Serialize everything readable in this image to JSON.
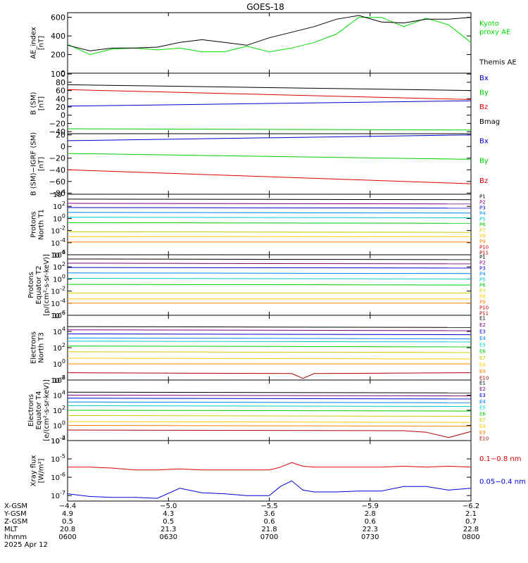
{
  "title": "GOES-18",
  "chart_data": [
    {
      "type": "line",
      "panel": "ae",
      "ylabel": [
        "AE_index",
        "[nT]"
      ],
      "ylim": [
        0,
        650
      ],
      "yticks": [
        {
          "v": 0,
          "t": "0"
        },
        {
          "v": 200,
          "t": "200"
        },
        {
          "v": 400,
          "t": "400"
        },
        {
          "v": 600,
          "t": "600"
        }
      ],
      "x": [
        0,
        10,
        20,
        30,
        40,
        50,
        60,
        70,
        80,
        90,
        100,
        110,
        120,
        130,
        140,
        150,
        160,
        170,
        180
      ],
      "series": [
        {
          "name": "Kyoto proxy AE",
          "label": [
            "Kyoto",
            "proxy AE"
          ],
          "color": "#00dd00",
          "values": [
            310,
            200,
            260,
            270,
            250,
            270,
            230,
            230,
            290,
            230,
            270,
            330,
            420,
            600,
            600,
            500,
            590,
            520,
            330
          ]
        },
        {
          "name": "Themis AE",
          "label": [
            "Themis AE"
          ],
          "color": "#000000",
          "values": [
            300,
            240,
            270,
            270,
            280,
            330,
            360,
            330,
            300,
            380,
            440,
            500,
            580,
            620,
            550,
            540,
            580,
            580,
            600
          ]
        }
      ]
    },
    {
      "type": "line",
      "panel": "bsm",
      "ylabel": [
        "B (SM)",
        "[nT]"
      ],
      "ylim": [
        -45,
        102
      ],
      "yticks": [
        {
          "v": -40,
          "t": "−40"
        },
        {
          "v": -20,
          "t": "−20"
        },
        {
          "v": 0,
          "t": "0"
        },
        {
          "v": 20,
          "t": "20"
        },
        {
          "v": 40,
          "t": "40"
        },
        {
          "v": 60,
          "t": "60"
        },
        {
          "v": 80,
          "t": "80"
        },
        {
          "v": 100,
          "t": "100"
        }
      ],
      "x": [
        0,
        180
      ],
      "series": [
        {
          "name": "Bx",
          "label": [
            "Bx"
          ],
          "color": "#0000cc",
          "values": [
            22,
            35
          ]
        },
        {
          "name": "By",
          "label": [
            "By"
          ],
          "color": "#00cc00",
          "values": [
            -33,
            -36
          ]
        },
        {
          "name": "Bz",
          "label": [
            "Bz"
          ],
          "color": "#dd0000",
          "values": [
            62,
            38
          ]
        },
        {
          "name": "Bmag",
          "label": [
            "Bmag"
          ],
          "color": "#000000",
          "values": [
            74,
            60
          ]
        }
      ]
    },
    {
      "type": "line",
      "panel": "bigrf",
      "ylabel": [
        "B (SM)−IGRF (SM)",
        "[nT]"
      ],
      "ylim": [
        -82,
        22
      ],
      "yticks": [
        {
          "v": -80,
          "t": "−80"
        },
        {
          "v": -60,
          "t": "−60"
        },
        {
          "v": -40,
          "t": "−40"
        },
        {
          "v": -20,
          "t": "−20"
        },
        {
          "v": 0,
          "t": "0"
        },
        {
          "v": 20,
          "t": "20"
        }
      ],
      "x": [
        0,
        180
      ],
      "series": [
        {
          "name": "Bx",
          "label": [
            "Bx"
          ],
          "color": "#0000cc",
          "values": [
            10,
            20
          ]
        },
        {
          "name": "By",
          "label": [
            "By"
          ],
          "color": "#00cc00",
          "values": [
            -12,
            -22
          ]
        },
        {
          "name": "Bz",
          "label": [
            "Bz"
          ],
          "color": "#dd0000",
          "values": [
            -40,
            -64
          ]
        }
      ]
    },
    {
      "type": "line",
      "panel": "p_north",
      "ylabel": [
        "Protons",
        "North T1"
      ],
      "scale": "log",
      "ylim": [
        -6,
        4
      ],
      "yticks": [
        {
          "v": 4,
          "t": "10^4"
        },
        {
          "v": 2,
          "t": "10^2"
        },
        {
          "v": 0,
          "t": "10^0"
        },
        {
          "v": -2,
          "t": "10^-2"
        },
        {
          "v": -4,
          "t": "10^-4"
        },
        {
          "v": -6,
          "t": "10^-6"
        }
      ],
      "x": [
        0,
        180
      ],
      "series": [
        {
          "name": "P1",
          "label": [
            "P1"
          ],
          "color": "#000000",
          "values": [
            3.2,
            3.1
          ]
        },
        {
          "name": "P2",
          "label": [
            "P2"
          ],
          "color": "#800080",
          "values": [
            2.5,
            2.4
          ]
        },
        {
          "name": "P3",
          "label": [
            "P3"
          ],
          "color": "#0000cc",
          "values": [
            1.8,
            1.7
          ]
        },
        {
          "name": "P4",
          "label": [
            "P4"
          ],
          "color": "#0080ff",
          "values": [
            1.0,
            0.9
          ]
        },
        {
          "name": "P5",
          "label": [
            "P5"
          ],
          "color": "#00cccc",
          "values": [
            0.2,
            0.1
          ]
        },
        {
          "name": "P6",
          "label": [
            "P6"
          ],
          "color": "#00cc00",
          "values": [
            -0.7,
            -0.8
          ]
        },
        {
          "name": "P7",
          "label": [
            "P7"
          ],
          "color": "#cccc00",
          "values": [
            -2.2,
            -2.3
          ]
        },
        {
          "name": "P8",
          "label": [
            "P8"
          ],
          "color": "#ffcc00",
          "values": [
            -3.0,
            -3.0
          ]
        },
        {
          "name": "P9",
          "label": [
            "P9"
          ],
          "color": "#ff8000",
          "values": [
            -3.9,
            -3.9
          ]
        },
        {
          "name": "P10",
          "label": [
            "P10"
          ],
          "color": "#dd0000"
        },
        {
          "name": "P11",
          "label": [
            "P11"
          ],
          "color": "#aa0000"
        }
      ]
    },
    {
      "type": "line",
      "panel": "p_eq",
      "ylabel": [
        "Protons",
        "Equator T2",
        "[p/(cm²-s-sr-keV)]"
      ],
      "scale": "log",
      "ylim": [
        -6,
        4
      ],
      "yticks": [
        {
          "v": 4,
          "t": "10^4"
        },
        {
          "v": 2,
          "t": "10^2"
        },
        {
          "v": 0,
          "t": "10^0"
        },
        {
          "v": -2,
          "t": "10^-2"
        },
        {
          "v": -4,
          "t": "10^-4"
        },
        {
          "v": -6,
          "t": "10^-6"
        }
      ],
      "x": [
        0,
        180
      ],
      "series": [
        {
          "name": "P1",
          "label": [
            "P1"
          ],
          "color": "#000000",
          "values": [
            3.3,
            3.2
          ]
        },
        {
          "name": "P2",
          "label": [
            "P2"
          ],
          "color": "#800080",
          "values": [
            2.6,
            2.5
          ]
        },
        {
          "name": "P3",
          "label": [
            "P3"
          ],
          "color": "#0000cc",
          "values": [
            1.9,
            1.8
          ]
        },
        {
          "name": "P4",
          "label": [
            "P4"
          ],
          "color": "#0080ff",
          "values": [
            1.0,
            0.9
          ]
        },
        {
          "name": "P5",
          "label": [
            "P5"
          ],
          "color": "#00cccc",
          "values": [
            0.1,
            0.0
          ]
        },
        {
          "name": "P6",
          "label": [
            "P6"
          ],
          "color": "#00cc00",
          "values": [
            -0.9,
            -1.0
          ]
        },
        {
          "name": "P7",
          "label": [
            "P7"
          ],
          "color": "#cccc00",
          "values": [
            -2.3,
            -2.3
          ]
        },
        {
          "name": "P8",
          "label": [
            "P8"
          ],
          "color": "#ffcc00",
          "values": [
            -3.3,
            -3.3
          ]
        },
        {
          "name": "P9",
          "label": [
            "P9"
          ],
          "color": "#ff8000",
          "values": [
            -4.0,
            -4.0
          ]
        },
        {
          "name": "P10",
          "label": [
            "P10"
          ],
          "color": "#dd0000"
        },
        {
          "name": "P11",
          "label": [
            "P11"
          ],
          "color": "#aa0000"
        }
      ]
    },
    {
      "type": "line",
      "panel": "e_north",
      "ylabel": [
        "Electrons",
        "North T3"
      ],
      "scale": "log",
      "ylim": [
        -2,
        6
      ],
      "yticks": [
        {
          "v": 6,
          "t": "10^6"
        },
        {
          "v": 4,
          "t": "10^4"
        },
        {
          "v": 2,
          "t": "10^2"
        },
        {
          "v": 0,
          "t": "10^0"
        },
        {
          "v": -2,
          "t": "10^-2"
        }
      ],
      "x": [
        0,
        180
      ],
      "series": [
        {
          "name": "E1",
          "label": [
            "E1"
          ],
          "color": "#000000",
          "values": [
            4.6,
            4.5
          ]
        },
        {
          "name": "E2",
          "label": [
            "E2"
          ],
          "color": "#800080",
          "values": [
            4.2,
            4.1
          ]
        },
        {
          "name": "E3",
          "label": [
            "E3"
          ],
          "color": "#0000cc",
          "values": [
            3.7,
            3.6
          ]
        },
        {
          "name": "E4",
          "label": [
            "E4"
          ],
          "color": "#0080ff",
          "values": [
            3.2,
            3.1
          ]
        },
        {
          "name": "E5",
          "label": [
            "E5"
          ],
          "color": "#00cccc",
          "values": [
            2.8,
            2.7
          ]
        },
        {
          "name": "E6",
          "label": [
            "E6"
          ],
          "color": "#00cc00",
          "values": [
            2.2,
            2.1
          ]
        },
        {
          "name": "E7",
          "label": [
            "E7"
          ],
          "color": "#cccc00",
          "values": [
            1.5,
            1.4
          ]
        },
        {
          "name": "E8",
          "label": [
            "E8"
          ],
          "color": "#ffcc00",
          "values": [
            0.7,
            0.6
          ]
        },
        {
          "name": "E9",
          "label": [
            "E9"
          ],
          "color": "#ff8000",
          "values": [
            0.0,
            0.0
          ]
        },
        {
          "name": "E10",
          "label": [
            "E10"
          ],
          "color": "#aa0000",
          "x": [
            0,
            100,
            105,
            110,
            180
          ],
          "values": [
            -1.1,
            -1.2,
            -1.8,
            -1.2,
            -1.1
          ]
        }
      ]
    },
    {
      "type": "line",
      "panel": "e_eq",
      "ylabel": [
        "Electrons",
        "Equator T4",
        "[e/(cm²-s-sr-keV)]"
      ],
      "scale": "log",
      "ylim": [
        -2,
        6
      ],
      "yticks": [
        {
          "v": 6,
          "t": "10^6"
        },
        {
          "v": 4,
          "t": "10^4"
        },
        {
          "v": 2,
          "t": "10^2"
        },
        {
          "v": 0,
          "t": "10^0"
        },
        {
          "v": -2,
          "t": "10^-2"
        }
      ],
      "x": [
        0,
        180
      ],
      "series": [
        {
          "name": "E1",
          "label": [
            "E1"
          ],
          "color": "#000000",
          "values": [
            4.4,
            4.3
          ]
        },
        {
          "name": "E2",
          "label": [
            "E2"
          ],
          "color": "#800080",
          "values": [
            4.0,
            3.9
          ]
        },
        {
          "name": "E3",
          "label": [
            "E3"
          ],
          "color": "#0000cc",
          "values": [
            3.6,
            3.5
          ]
        },
        {
          "name": "E4",
          "label": [
            "E4"
          ],
          "color": "#0080ff",
          "values": [
            3.1,
            3.0
          ]
        },
        {
          "name": "E5",
          "label": [
            "E5"
          ],
          "color": "#00cccc",
          "values": [
            2.6,
            2.5
          ]
        },
        {
          "name": "E6",
          "label": [
            "E6"
          ],
          "color": "#00cc00",
          "values": [
            2.0,
            1.9
          ]
        },
        {
          "name": "E7",
          "label": [
            "E7"
          ],
          "color": "#cccc00",
          "values": [
            1.3,
            1.2
          ]
        },
        {
          "name": "E8",
          "label": [
            "E8"
          ],
          "color": "#ffcc00",
          "values": [
            0.5,
            0.4
          ]
        },
        {
          "name": "E9",
          "label": [
            "E9"
          ],
          "color": "#ff8000",
          "values": [
            0.0,
            -0.1
          ]
        },
        {
          "name": "E10",
          "label": [
            "E10"
          ],
          "color": "#aa0000",
          "x": [
            0,
            150,
            160,
            170,
            180
          ],
          "values": [
            -0.6,
            -0.7,
            -0.9,
            -1.6,
            -0.8
          ]
        }
      ]
    },
    {
      "type": "line",
      "panel": "xray",
      "ylabel": [
        "Xray flux",
        "[W/m²]"
      ],
      "scale": "log",
      "ylim": [
        -7.3,
        -4
      ],
      "yticks": [
        {
          "v": -4,
          "t": "10^-4"
        },
        {
          "v": -5,
          "t": "10^-5"
        },
        {
          "v": -6,
          "t": "10^-6"
        },
        {
          "v": -7,
          "t": "10^-7"
        }
      ],
      "x": [
        0,
        10,
        20,
        30,
        40,
        50,
        60,
        70,
        80,
        90,
        95,
        100,
        105,
        110,
        120,
        130,
        140,
        150,
        160,
        170,
        180
      ],
      "series": [
        {
          "name": "0.1-0.8 nm",
          "label": [
            "0.1−0.8 nm"
          ],
          "color": "#dd0000",
          "values": [
            -5.45,
            -5.45,
            -5.5,
            -5.6,
            -5.6,
            -5.55,
            -5.6,
            -5.6,
            -5.6,
            -5.6,
            -5.45,
            -5.2,
            -5.4,
            -5.45,
            -5.45,
            -5.45,
            -5.45,
            -5.4,
            -5.45,
            -5.4,
            -5.45
          ]
        },
        {
          "name": "0.05-0.4 nm",
          "label": [
            "0.05−0.4 nm"
          ],
          "color": "#0000dd",
          "values": [
            -6.9,
            -7.05,
            -7.1,
            -7.1,
            -7.15,
            -6.6,
            -6.85,
            -6.9,
            -7.0,
            -7.0,
            -6.5,
            -6.2,
            -6.7,
            -6.8,
            -6.8,
            -6.75,
            -6.75,
            -6.5,
            -6.5,
            -6.7,
            -6.6
          ]
        }
      ]
    }
  ],
  "xaxis": {
    "tick_x": [
      0,
      45,
      90,
      135,
      180
    ],
    "row_labels": [
      "X-GSM",
      "Y-GSM",
      "Z-GSM",
      "MLT",
      "hhmm",
      "2025 Apr 12"
    ],
    "rows": [
      [
        "−4.4",
        "−5.0",
        "−5.5",
        "−5.9",
        "−6.2"
      ],
      [
        "4.9",
        "4.3",
        "3.6",
        "2.8",
        "2.1"
      ],
      [
        "0.5",
        "0.5",
        "0.6",
        "0.6",
        "0.7"
      ],
      [
        "20.8",
        "21.3",
        "21.8",
        "22.3",
        "22.8"
      ],
      [
        "0600",
        "0630",
        "0700",
        "0730",
        "0800"
      ]
    ]
  }
}
